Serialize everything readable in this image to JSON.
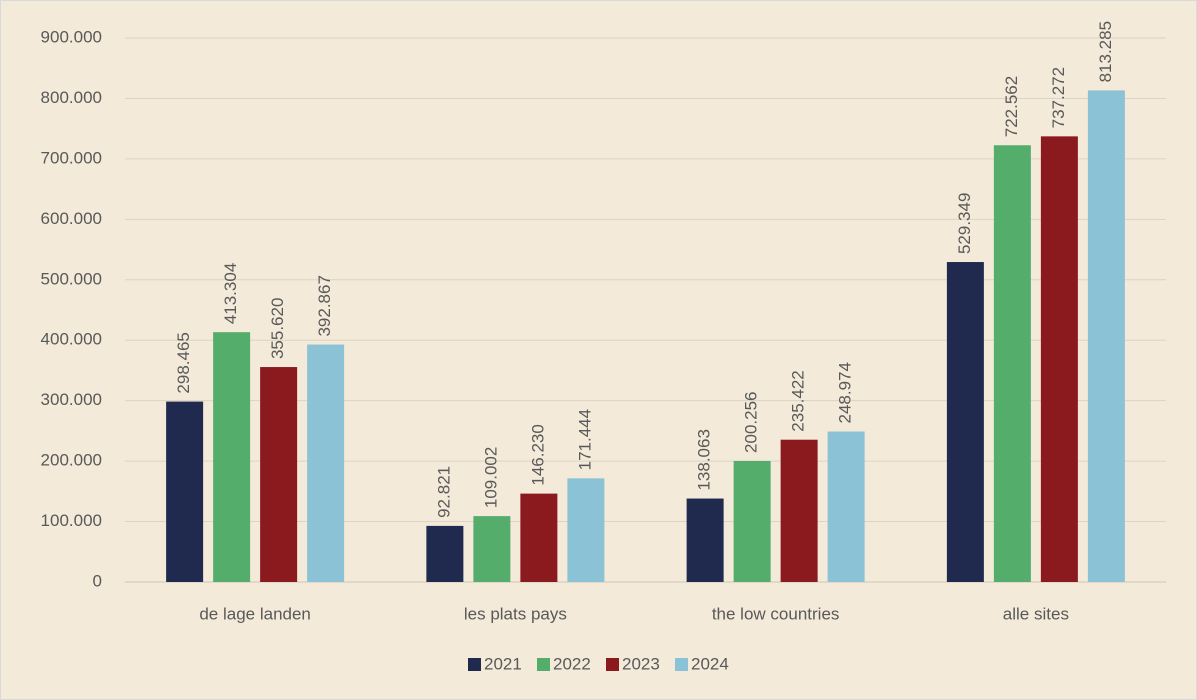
{
  "chart_data": {
    "type": "bar",
    "categories": [
      "de lage landen",
      "les plats pays",
      "the low countries",
      "alle sites"
    ],
    "series": [
      {
        "name": "2021",
        "color": "#1f2a4e",
        "values": [
          298465,
          92821,
          138063,
          529349
        ],
        "value_labels": [
          "298.465",
          "92.821",
          "138.063",
          "529.349"
        ]
      },
      {
        "name": "2022",
        "color": "#55ad6b",
        "values": [
          413304,
          109002,
          200256,
          722562
        ],
        "value_labels": [
          "413.304",
          "109.002",
          "200.256",
          "722.562"
        ]
      },
      {
        "name": "2023",
        "color": "#8b1a1f",
        "values": [
          355620,
          146230,
          235422,
          737272
        ],
        "value_labels": [
          "355.620",
          "146.230",
          "235.422",
          "737.272"
        ]
      },
      {
        "name": "2024",
        "color": "#8cc2d6",
        "values": [
          392867,
          171444,
          248974,
          813285
        ],
        "value_labels": [
          "392.867",
          "171.444",
          "248.974",
          "813.285"
        ]
      }
    ],
    "ylim": [
      0,
      900000
    ],
    "yticks": [
      0,
      {
        "value": 100000,
        "label": "100.000"
      },
      {
        "value": 200000,
        "label": "200.000"
      },
      {
        "value": 300000,
        "label": "300.000"
      },
      {
        "value": 400000,
        "label": "400.000"
      },
      {
        "value": 500000,
        "label": "500.000"
      },
      {
        "value": 600000,
        "label": "600.000"
      },
      {
        "value": 700000,
        "label": "700.000"
      },
      {
        "value": 800000,
        "label": "800.000"
      },
      {
        "value": 900000,
        "label": "900.000"
      }
    ],
    "grid": true,
    "legend": "bottom"
  }
}
